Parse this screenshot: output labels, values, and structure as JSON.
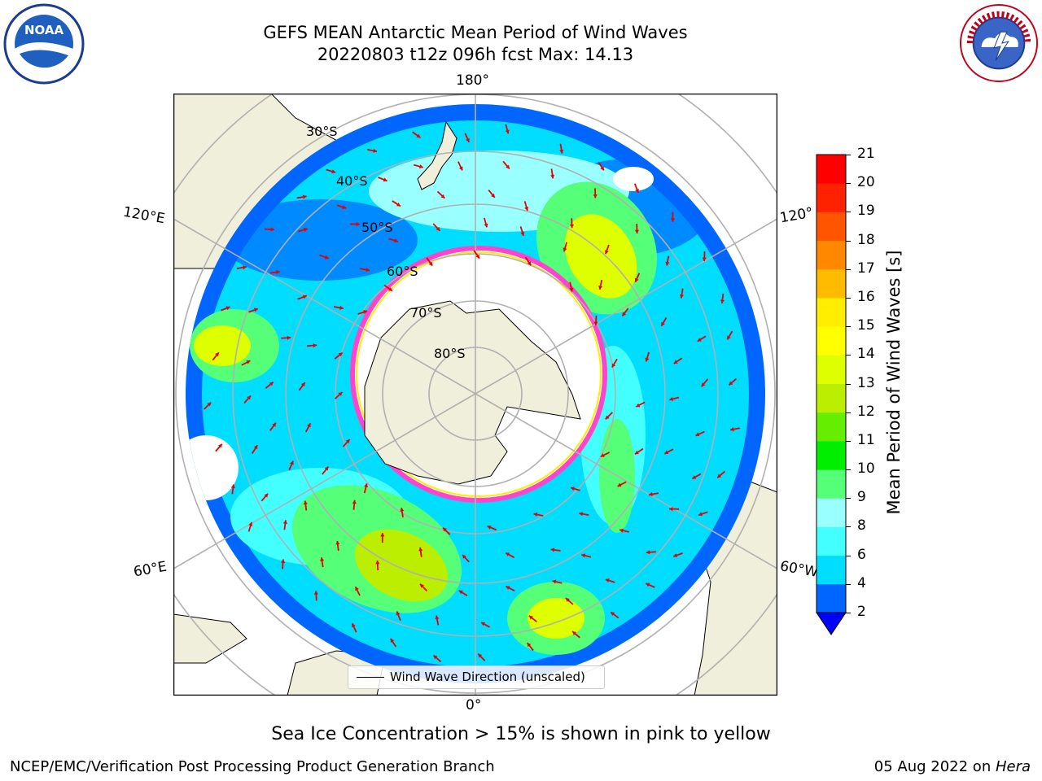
{
  "header": {
    "title_line1": "GEFS MEAN Antarctic Mean Period of Wind Waves",
    "title_line2": "20220803 t12z 096h fcst   Max: 14.13"
  },
  "logos": {
    "left": "NOAA",
    "right": "NATIONAL WEATHER SERVICE"
  },
  "map": {
    "projection": "south-polar-stereographic",
    "longitude_labels": {
      "top": "180°",
      "bottom": "0°",
      "upper_left": "120°E",
      "upper_right": "120°",
      "lower_left": "60°E",
      "lower_right": "60°W"
    },
    "latitude_labels": [
      "30°S",
      "40°S",
      "50°S",
      "60°S",
      "70°S",
      "80°S"
    ],
    "legend": "Wind Wave Direction (unscaled)",
    "arrow_color": "#e60000"
  },
  "colorbar": {
    "label": "Mean Period of Wind Waves [s]",
    "ticks": [
      "2",
      "4",
      "6",
      "8",
      "9",
      "10",
      "11",
      "12",
      "13",
      "14",
      "15",
      "16",
      "17",
      "18",
      "19",
      "20",
      "21"
    ],
    "colors": [
      "#0066ff",
      "#00ddff",
      "#44ffff",
      "#99ffff",
      "#55ff77",
      "#00ee00",
      "#66ee00",
      "#bbee00",
      "#ddff00",
      "#ffff00",
      "#ffee00",
      "#ffbb00",
      "#ff8800",
      "#ff5500",
      "#ff2200",
      "#ff0000"
    ],
    "extend_color": "#0000ff"
  },
  "notes": {
    "sea_ice": "Sea Ice Concentration > 15% is shown in pink to yellow",
    "credit": "NCEP/EMC/Verification Post Processing Product Generation Branch",
    "date": "05 Aug 2022 on ",
    "machine": "Hera"
  }
}
